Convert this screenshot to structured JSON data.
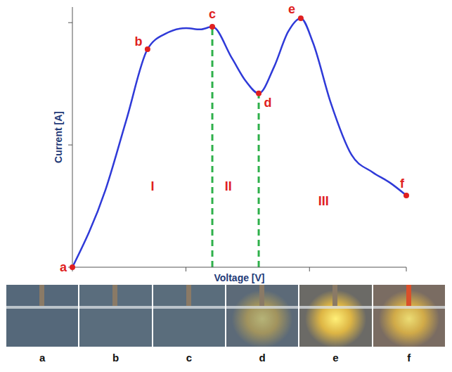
{
  "chart_data": {
    "type": "line",
    "x_label": "Voltage [V]",
    "y_label": "Current [A]",
    "color": "#2f3ad8",
    "x": [
      0,
      9.9,
      16.2,
      22.5,
      27.8,
      34.1,
      38.3,
      41.9,
      47.8,
      52,
      55.8,
      60.4,
      64.6,
      68.4,
      72,
      77.3,
      83.6,
      89.9,
      95.2,
      100
    ],
    "values": [
      0,
      29.7,
      56.8,
      83.8,
      89.7,
      91.9,
      91.4,
      92.4,
      80.3,
      71.4,
      66.8,
      77,
      90.5,
      95.7,
      86.5,
      63.5,
      43.2,
      36.5,
      32.4,
      27.6
    ],
    "xlim": [
      0,
      100
    ],
    "ylim": [
      0,
      100
    ],
    "xticks": [
      0,
      34,
      71,
      100
    ],
    "yticks": [
      0,
      47,
      94
    ],
    "tick_labels": false,
    "grid": false,
    "points": [
      {
        "label": "a",
        "x": 0,
        "y": 0
      },
      {
        "label": "b",
        "x": 22.5,
        "y": 83.8
      },
      {
        "label": "c",
        "x": 41.9,
        "y": 92.4
      },
      {
        "label": "d",
        "x": 55.8,
        "y": 66.8
      },
      {
        "label": "e",
        "x": 68.4,
        "y": 95.7
      },
      {
        "label": "f",
        "x": 100,
        "y": 27.6
      }
    ],
    "dashed_lines": [
      {
        "x": 41.9,
        "y": 92.4
      },
      {
        "x": 55.8,
        "y": 66.8
      }
    ],
    "annotations": [
      {
        "text": "I",
        "x": 24,
        "y": 30.8
      },
      {
        "text": "II",
        "x": 46.7,
        "y": 30.8
      },
      {
        "text": "III",
        "x": 75.2,
        "y": 25
      }
    ]
  },
  "photos": {
    "labels": [
      "a",
      "b",
      "c",
      "d",
      "e",
      "f"
    ]
  }
}
